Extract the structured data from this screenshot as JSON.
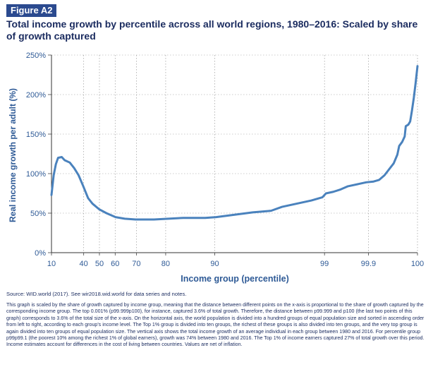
{
  "figure_label": "Figure A2",
  "chart_data": {
    "type": "line",
    "title": "Total income growth by percentile across all world regions, 1980–2016: Scaled by share of growth captured",
    "xlabel": "Income group (percentile)",
    "ylabel": "Real income growth per adult (%)",
    "ylim": [
      0,
      250
    ],
    "yticks": [
      0,
      50,
      100,
      150,
      200,
      250
    ],
    "ytick_labels": [
      "0%",
      "50%",
      "100%",
      "150%",
      "200%",
      "250%"
    ],
    "xticks": [
      {
        "label": "10",
        "at": 0.0
      },
      {
        "label": "40",
        "at": 0.088
      },
      {
        "label": "50",
        "at": 0.131
      },
      {
        "label": "60",
        "at": 0.174
      },
      {
        "label": "70",
        "at": 0.232
      },
      {
        "label": "80",
        "at": 0.312
      },
      {
        "label": "90",
        "at": 0.446
      },
      {
        "label": "99",
        "at": 0.746
      },
      {
        "label": "99.9",
        "at": 0.866
      },
      {
        "label": "100",
        "at": 1.0
      }
    ],
    "x_scale": "proportional to share of growth captured (0 = p10, 1 = p100)",
    "grid": "vertical dotted at x ticks",
    "legend": "none",
    "series": [
      {
        "color": "#4a82bd",
        "points": [
          [
            0.0,
            73
          ],
          [
            0.006,
            98
          ],
          [
            0.012,
            112
          ],
          [
            0.018,
            120
          ],
          [
            0.028,
            121
          ],
          [
            0.036,
            117
          ],
          [
            0.05,
            114
          ],
          [
            0.062,
            107
          ],
          [
            0.074,
            98
          ],
          [
            0.086,
            85
          ],
          [
            0.1,
            69
          ],
          [
            0.112,
            62
          ],
          [
            0.13,
            55
          ],
          [
            0.15,
            50
          ],
          [
            0.175,
            45
          ],
          [
            0.2,
            43
          ],
          [
            0.23,
            42
          ],
          [
            0.28,
            42
          ],
          [
            0.32,
            43
          ],
          [
            0.36,
            44
          ],
          [
            0.42,
            44
          ],
          [
            0.45,
            45
          ],
          [
            0.5,
            48
          ],
          [
            0.55,
            51
          ],
          [
            0.6,
            53
          ],
          [
            0.63,
            58
          ],
          [
            0.65,
            60
          ],
          [
            0.68,
            63
          ],
          [
            0.71,
            66
          ],
          [
            0.74,
            70
          ],
          [
            0.75,
            75
          ],
          [
            0.77,
            77
          ],
          [
            0.79,
            80
          ],
          [
            0.81,
            84
          ],
          [
            0.84,
            87
          ],
          [
            0.86,
            89
          ],
          [
            0.88,
            90
          ],
          [
            0.895,
            92
          ],
          [
            0.91,
            98
          ],
          [
            0.92,
            104
          ],
          [
            0.935,
            113
          ],
          [
            0.945,
            124
          ],
          [
            0.95,
            135
          ],
          [
            0.958,
            140
          ],
          [
            0.965,
            147
          ],
          [
            0.968,
            160
          ],
          [
            0.975,
            162
          ],
          [
            0.98,
            166
          ],
          [
            0.985,
            180
          ],
          [
            0.99,
            196
          ],
          [
            0.995,
            215
          ],
          [
            1.0,
            236
          ]
        ]
      }
    ]
  },
  "source_text": "Source: WID.world (2017). See wir2018.wid.world for data series and notes.",
  "notes_text": "This graph is scaled by the share of growth captured by income group, meaning that the distance between different points on the x-axis is proportional to the share of growth captured by the corresponding income group. The top 0.001% (p99.999p100), for instance, captured 3.6% of total growth. Therefore, the distance between p99.999 and p100 (the last two points of this graph) corresponds to 3.6% of the total size of the x-axis. On the horizontal axis, the world population is divided into a hundred groups of equal population size and sorted in ascending order from left to right, according to each group's income level. The Top 1% group is divided into ten groups, the richest of these groups is also divided into ten groups, and the very top group is again divided into ten groups of equal population size. The vertical axis shows the total income growth of an average individual in each group between 1980 and 2016. For percentile group p99p99.1 (the poorest 10% among the richest 1% of global earners), growth was 74% between 1980 and 2016. The Top 1% of income earners captured 27% of total growth over this period. Income estimates account for differences in the cost of living between countries. Values are net of inflation.",
  "colors": {
    "brand": "#2b4a8f",
    "title": "#1a2b5f",
    "axis_text": "#2e5a96",
    "line": "#4a82bd",
    "grid": "#999999"
  }
}
